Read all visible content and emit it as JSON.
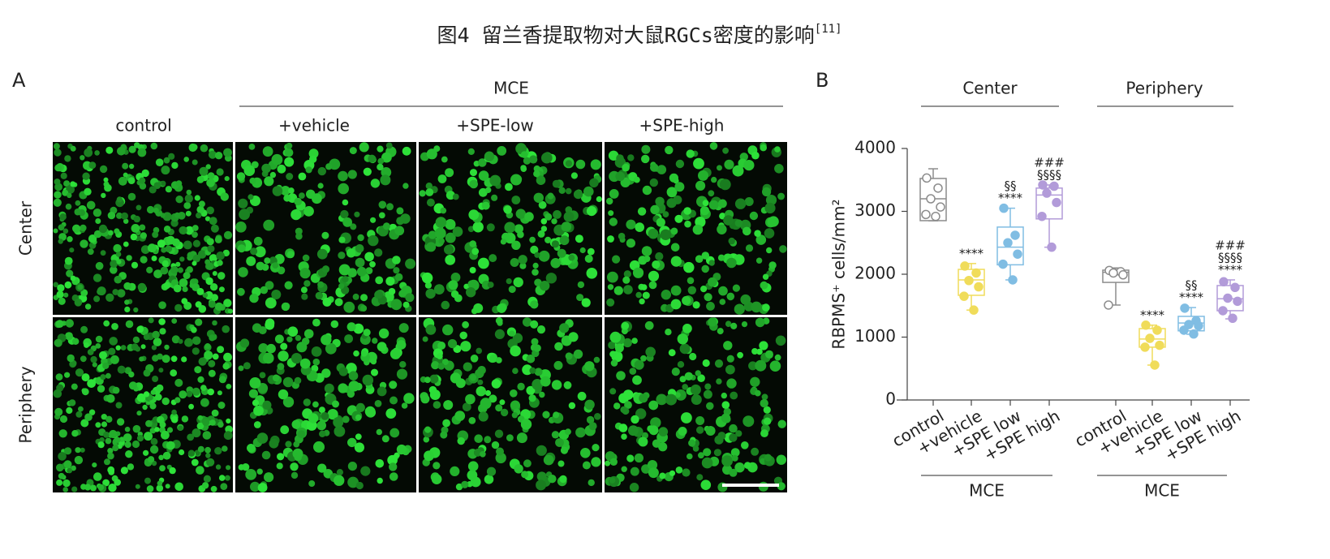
{
  "title": "图4 留兰香提取物对大鼠RGCs密度的影响",
  "title_ref": "[11]",
  "panel_a": {
    "label": "A",
    "group_label": "MCE",
    "columns": [
      "control",
      "+vehicle",
      "+SPE-low",
      "+SPE-high"
    ],
    "rows": [
      "Center",
      "Periphery"
    ]
  },
  "chart_data": {
    "type": "box",
    "label": "B",
    "y_label": "RBPMS⁺ cells/mm²",
    "ylim": [
      0,
      4000
    ],
    "yticks": [
      0,
      1000,
      2000,
      3000,
      4000
    ],
    "groups": [
      {
        "name": "Center",
        "treatment_label": "MCE",
        "series": [
          {
            "name": "control",
            "color": "#8c8c8c",
            "filled": false,
            "values": [
              3530,
              3370,
              3200,
              3070,
              2950,
              2920
            ],
            "q1": 2852,
            "median": 3200,
            "q3": 3523,
            "whisker_low": 2850,
            "whisker_high": 3677,
            "annotations": []
          },
          {
            "name": "+vehicle",
            "color": "#f0dc5a",
            "filled": true,
            "values": [
              2130,
              2020,
              1900,
              1800,
              1650,
              1430
            ],
            "q1": 1665,
            "median": 1910,
            "q3": 2077,
            "whisker_low": 1430,
            "whisker_high": 2170,
            "annotations": [
              "****"
            ]
          },
          {
            "name": "+SPE low",
            "color": "#80bde3",
            "filled": true,
            "values": [
              3050,
              2620,
              2500,
              2320,
              2160,
              1910
            ],
            "q1": 2150,
            "median": 2430,
            "q3": 2750,
            "whisker_low": 1910,
            "whisker_high": 3050,
            "annotations": [
              "§§",
              "****"
            ]
          },
          {
            "name": "+SPE high",
            "color": "#b29bd9",
            "filled": true,
            "values": [
              3420,
              3400,
              3290,
              3140,
              2920,
              2430
            ],
            "q1": 2880,
            "median": 3260,
            "q3": 3370,
            "whisker_low": 2430,
            "whisker_high": 3420,
            "annotations": [
              "###",
              "§§§§"
            ]
          }
        ]
      },
      {
        "name": "Periphery",
        "treatment_label": "MCE",
        "series": [
          {
            "name": "control",
            "color": "#8c8c8c",
            "filled": false,
            "values": [
              2060,
              2040,
              2020,
              1990,
              1510
            ],
            "q1": 1870,
            "median": 2030,
            "q3": 2065,
            "whisker_low": 1510,
            "whisker_high": 2100,
            "annotations": []
          },
          {
            "name": "+vehicle",
            "color": "#f0dc5a",
            "filled": true,
            "values": [
              1190,
              1110,
              980,
              870,
              840,
              555
            ],
            "q1": 840,
            "median": 970,
            "q3": 1135,
            "whisker_low": 555,
            "whisker_high": 1190,
            "annotations": [
              "****"
            ]
          },
          {
            "name": "+SPE low",
            "color": "#80bde3",
            "filled": true,
            "values": [
              1460,
              1260,
              1200,
              1180,
              1110,
              1050
            ],
            "q1": 1100,
            "median": 1225,
            "q3": 1330,
            "whisker_low": 1045,
            "whisker_high": 1470,
            "annotations": [
              "§§",
              "****"
            ]
          },
          {
            "name": "+SPE high",
            "color": "#b29bd9",
            "filled": true,
            "values": [
              1880,
              1790,
              1620,
              1570,
              1420,
              1300
            ],
            "q1": 1420,
            "median": 1610,
            "q3": 1820,
            "whisker_low": 1290,
            "whisker_high": 1910,
            "annotations": [
              "###",
              "§§§§",
              "****"
            ]
          }
        ]
      }
    ]
  }
}
